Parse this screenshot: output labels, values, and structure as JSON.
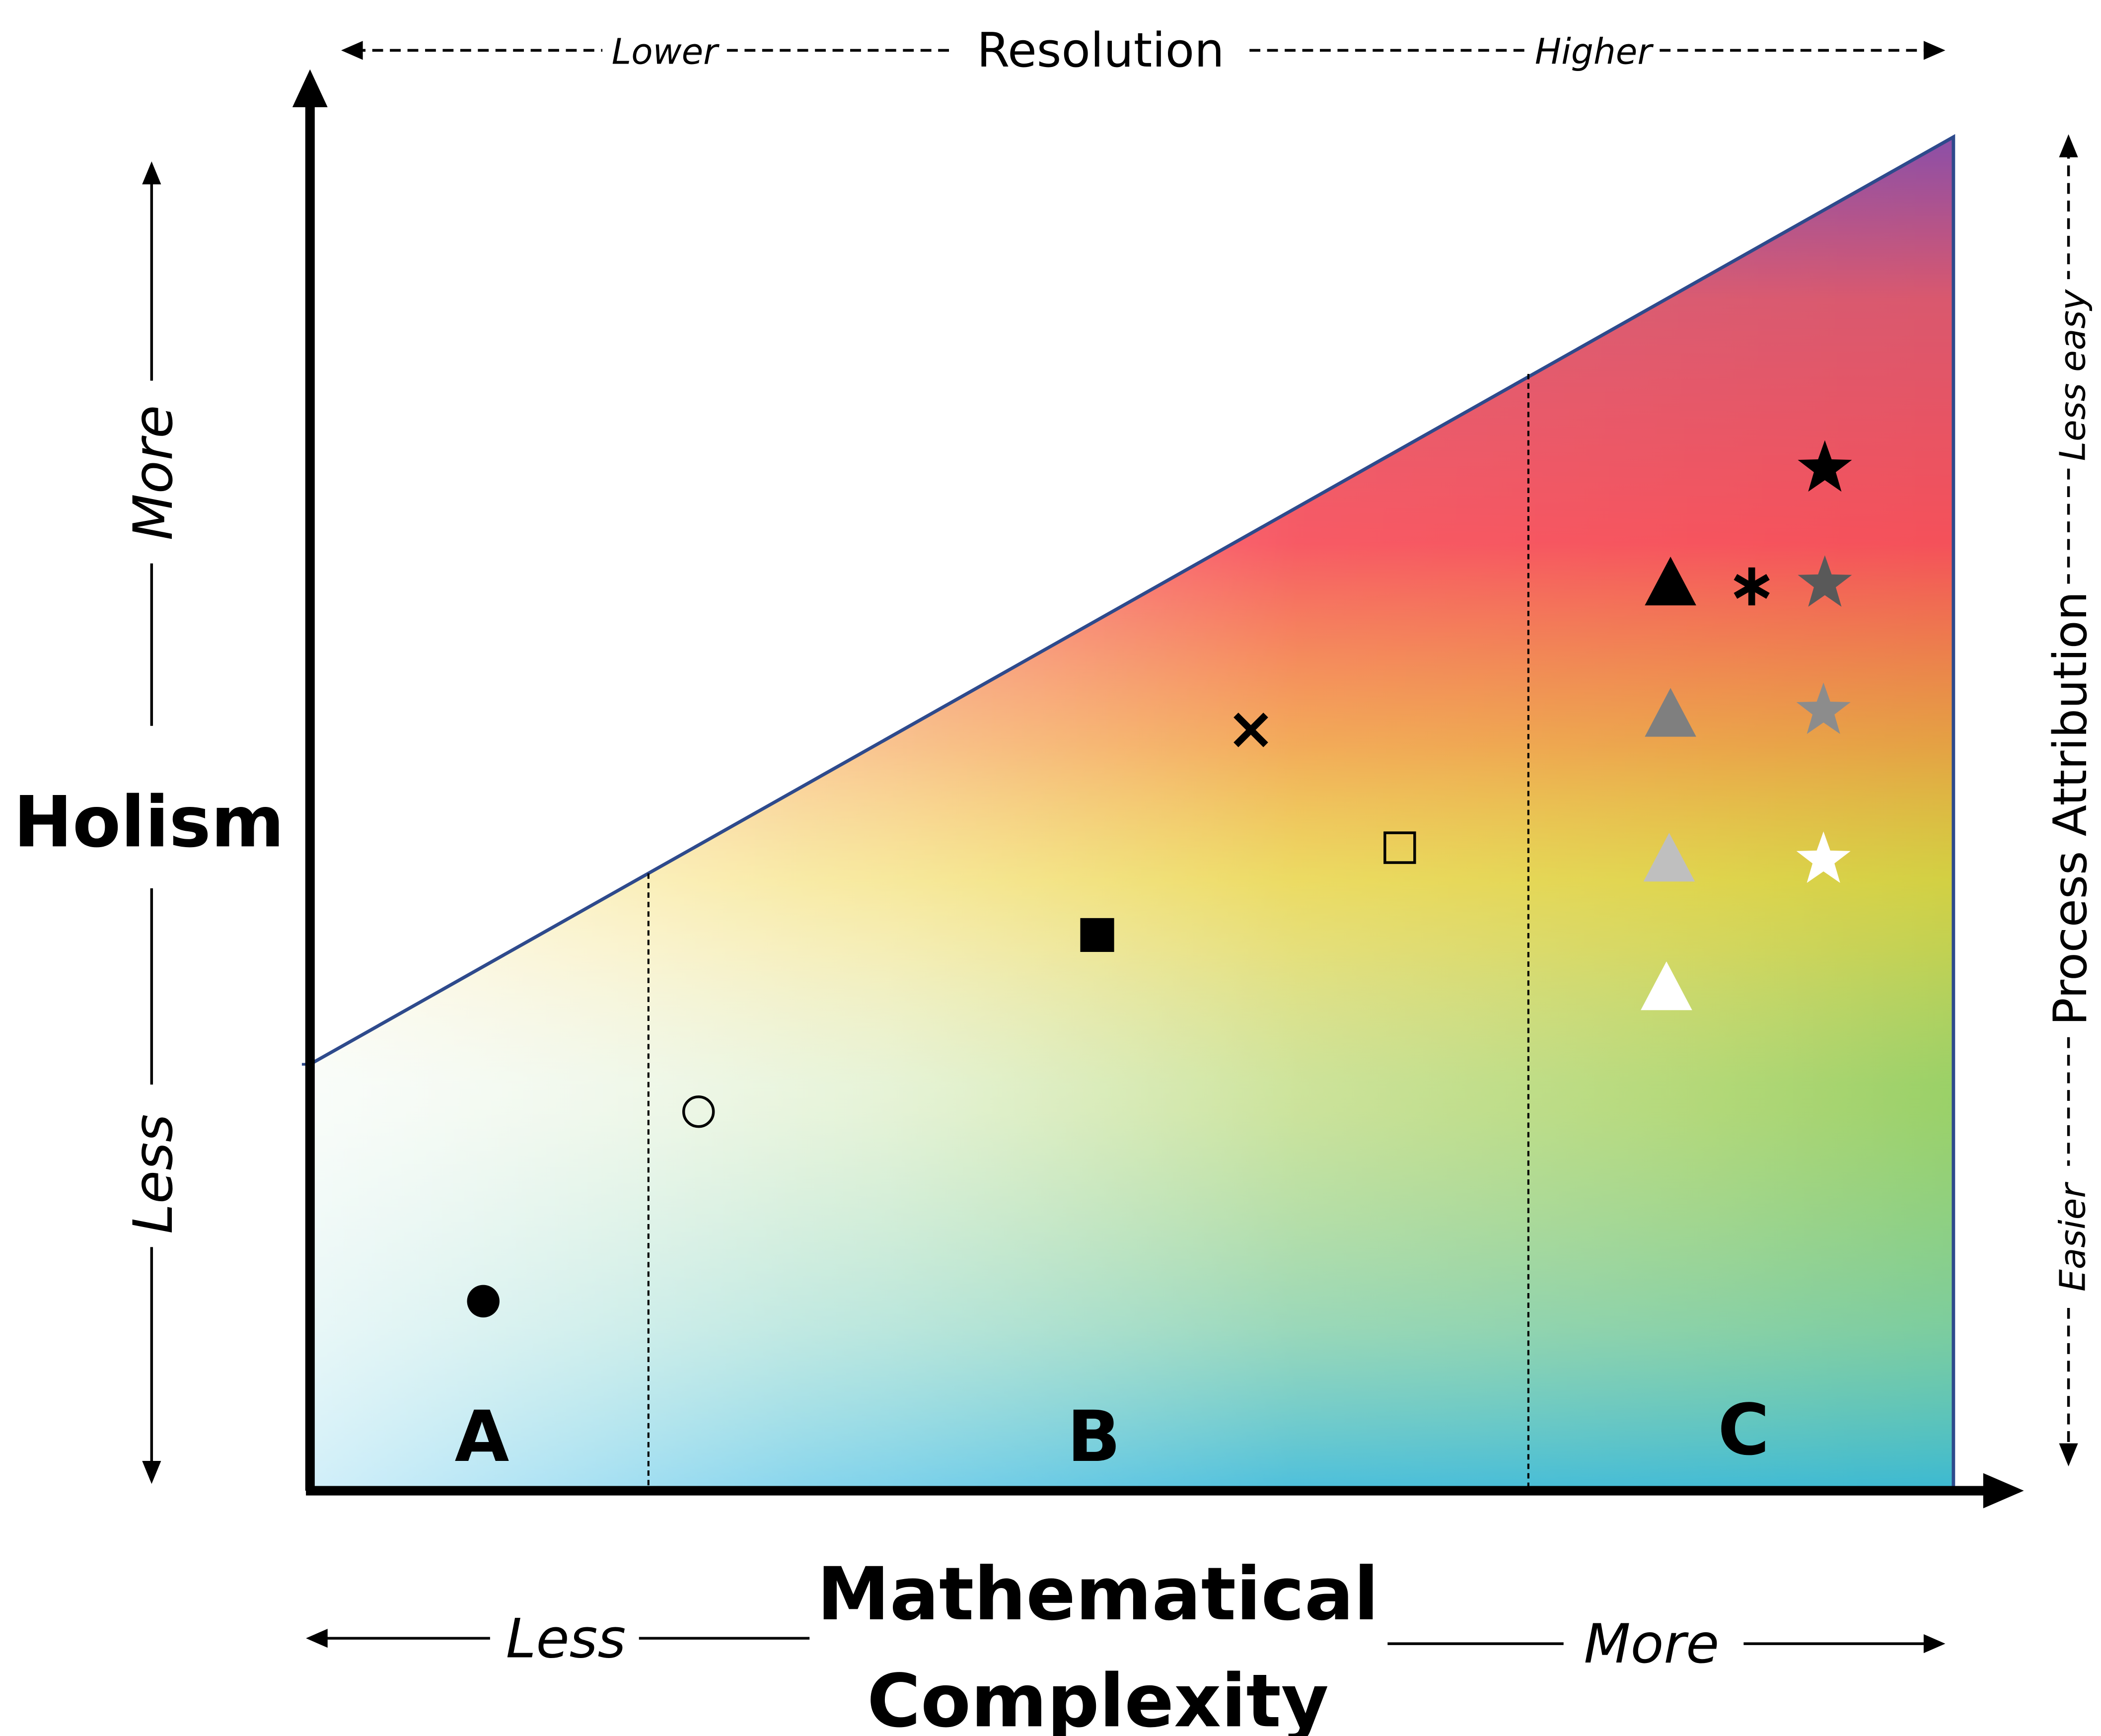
{
  "top_axis": {
    "title": "Resolution",
    "left_label": "Lower",
    "right_label": "Higher"
  },
  "left_axis": {
    "title": "Holism",
    "upper_label": "More",
    "lower_label": "Less"
  },
  "right_axis": {
    "title": "Process Attribution",
    "upper_label": "Less easy",
    "lower_label": "Easier"
  },
  "bottom_axis": {
    "title_line1": "Mathematical",
    "title_line2": "Complexity",
    "left_label": "Less",
    "right_label": "More"
  },
  "regions": [
    "A",
    "B",
    "C"
  ],
  "markers": [
    {
      "name": "filled-circle-marker",
      "shape": "circle",
      "fill": "#000000"
    },
    {
      "name": "open-circle-marker",
      "shape": "circle",
      "fill": "none"
    },
    {
      "name": "filled-square-marker",
      "shape": "square",
      "fill": "#000000"
    },
    {
      "name": "open-square-marker",
      "shape": "square",
      "fill": "none"
    },
    {
      "name": "cross-marker",
      "shape": "cross",
      "fill": "#000000"
    },
    {
      "name": "asterisk-marker",
      "shape": "asterisk",
      "fill": "#000000"
    },
    {
      "name": "triangle-black-marker",
      "shape": "triangle",
      "fill": "#000000"
    },
    {
      "name": "triangle-dark-gray-marker",
      "shape": "triangle",
      "fill": "#7f7f7f"
    },
    {
      "name": "triangle-light-gray-marker",
      "shape": "triangle",
      "fill": "#bfbfbf"
    },
    {
      "name": "triangle-white-marker",
      "shape": "triangle",
      "fill": "#ffffff"
    },
    {
      "name": "star-black-marker",
      "shape": "star",
      "fill": "#000000"
    },
    {
      "name": "star-dark-gray-marker",
      "shape": "star",
      "fill": "#595959"
    },
    {
      "name": "star-gray-marker",
      "shape": "star",
      "fill": "#8c8c8c"
    },
    {
      "name": "star-white-marker",
      "shape": "star",
      "fill": "#ffffff"
    }
  ],
  "colors": {
    "top_left": "#fdf8e4",
    "bottom_left": "#e3f4fb",
    "mid_yellow": "#fcd56b",
    "orange": "#fb923c",
    "red": "#f94a5a",
    "purple": "#8b4fa8",
    "green": "#a8d25a",
    "blue": "#29b5e8",
    "outline": "#2e4a8c"
  }
}
